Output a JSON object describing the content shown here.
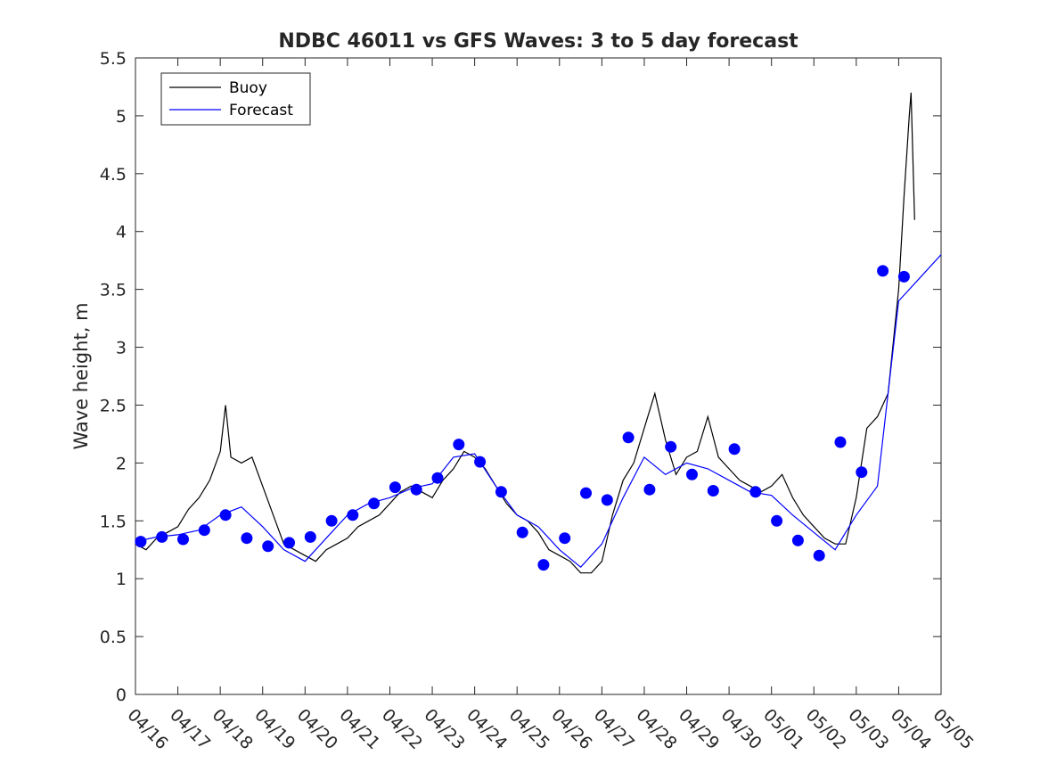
{
  "chart_data": {
    "type": "line",
    "title": "NDBC 46011 vs GFS Waves: 3 to 5 day forecast",
    "xlabel": "",
    "ylabel": "Wave height, m",
    "ylim": [
      0,
      5.5
    ],
    "yticks": [
      0,
      0.5,
      1,
      1.5,
      2,
      2.5,
      3,
      3.5,
      4,
      4.5,
      5,
      5.5
    ],
    "ytick_labels": [
      "0",
      "0.5",
      "1",
      "1.5",
      "2",
      "2.5",
      "3",
      "3.5",
      "4",
      "4.5",
      "5",
      "5.5"
    ],
    "xlim": [
      "2024-04-16",
      "2024-05-05"
    ],
    "xtick_labels": [
      "04/16",
      "04/17",
      "04/18",
      "04/19",
      "04/20",
      "04/21",
      "04/22",
      "04/23",
      "04/24",
      "04/25",
      "04/26",
      "04/27",
      "04/28",
      "04/29",
      "04/30",
      "05/01",
      "05/02",
      "05/03",
      "05/04",
      "05/05"
    ],
    "grid": false,
    "legend": {
      "position": "top-left",
      "entries": [
        {
          "name": "Buoy",
          "color": "#000000"
        },
        {
          "name": "Forecast",
          "color": "#0000ff"
        }
      ]
    },
    "series": [
      {
        "name": "Buoy",
        "color": "#000000",
        "points": [
          [
            "04/16 00:00",
            1.3
          ],
          [
            "04/16 06:00",
            1.25
          ],
          [
            "04/16 12:00",
            1.35
          ],
          [
            "04/16 18:00",
            1.4
          ],
          [
            "04/17 00:00",
            1.45
          ],
          [
            "04/17 06:00",
            1.6
          ],
          [
            "04/17 12:00",
            1.7
          ],
          [
            "04/17 18:00",
            1.85
          ],
          [
            "04/18 00:00",
            2.1
          ],
          [
            "04/18 03:00",
            2.5
          ],
          [
            "04/18 06:00",
            2.05
          ],
          [
            "04/18 12:00",
            2.0
          ],
          [
            "04/18 18:00",
            2.05
          ],
          [
            "04/19 00:00",
            1.8
          ],
          [
            "04/19 06:00",
            1.55
          ],
          [
            "04/19 12:00",
            1.3
          ],
          [
            "04/19 18:00",
            1.25
          ],
          [
            "04/20 00:00",
            1.2
          ],
          [
            "04/20 06:00",
            1.15
          ],
          [
            "04/20 12:00",
            1.25
          ],
          [
            "04/20 18:00",
            1.3
          ],
          [
            "04/21 00:00",
            1.35
          ],
          [
            "04/21 06:00",
            1.45
          ],
          [
            "04/21 12:00",
            1.5
          ],
          [
            "04/21 18:00",
            1.55
          ],
          [
            "04/22 00:00",
            1.65
          ],
          [
            "04/22 06:00",
            1.75
          ],
          [
            "04/22 12:00",
            1.8
          ],
          [
            "04/22 18:00",
            1.75
          ],
          [
            "04/23 00:00",
            1.7
          ],
          [
            "04/23 06:00",
            1.85
          ],
          [
            "04/23 12:00",
            1.95
          ],
          [
            "04/23 18:00",
            2.1
          ],
          [
            "04/24 00:00",
            2.05
          ],
          [
            "04/24 06:00",
            1.95
          ],
          [
            "04/24 12:00",
            1.8
          ],
          [
            "04/24 18:00",
            1.65
          ],
          [
            "04/25 00:00",
            1.55
          ],
          [
            "04/25 06:00",
            1.5
          ],
          [
            "04/25 12:00",
            1.4
          ],
          [
            "04/25 18:00",
            1.25
          ],
          [
            "04/26 00:00",
            1.2
          ],
          [
            "04/26 06:00",
            1.15
          ],
          [
            "04/26 12:00",
            1.05
          ],
          [
            "04/26 18:00",
            1.05
          ],
          [
            "04/27 00:00",
            1.15
          ],
          [
            "04/27 06:00",
            1.55
          ],
          [
            "04/27 12:00",
            1.85
          ],
          [
            "04/27 18:00",
            2.0
          ],
          [
            "04/28 00:00",
            2.3
          ],
          [
            "04/28 06:00",
            2.6
          ],
          [
            "04/28 12:00",
            2.2
          ],
          [
            "04/28 18:00",
            1.9
          ],
          [
            "04/29 00:00",
            2.05
          ],
          [
            "04/29 06:00",
            2.1
          ],
          [
            "04/29 12:00",
            2.4
          ],
          [
            "04/29 18:00",
            2.05
          ],
          [
            "04/30 00:00",
            1.95
          ],
          [
            "04/30 06:00",
            1.85
          ],
          [
            "04/30 12:00",
            1.8
          ],
          [
            "04/30 18:00",
            1.75
          ],
          [
            "05/01 00:00",
            1.8
          ],
          [
            "05/01 06:00",
            1.9
          ],
          [
            "05/01 12:00",
            1.7
          ],
          [
            "05/01 18:00",
            1.55
          ],
          [
            "05/02 00:00",
            1.45
          ],
          [
            "05/02 06:00",
            1.35
          ],
          [
            "05/02 12:00",
            1.3
          ],
          [
            "05/02 18:00",
            1.3
          ],
          [
            "05/03 00:00",
            1.7
          ],
          [
            "05/03 06:00",
            2.3
          ],
          [
            "05/03 12:00",
            2.4
          ],
          [
            "05/03 18:00",
            2.6
          ],
          [
            "05/04 00:00",
            3.5
          ],
          [
            "05/04 03:00",
            4.3
          ],
          [
            "05/04 06:00",
            5.0
          ],
          [
            "05/04 07:00",
            5.2
          ],
          [
            "05/04 09:00",
            4.1
          ]
        ]
      },
      {
        "name": "Forecast",
        "color": "#0000ff",
        "points": [
          [
            "04/16 00:00",
            1.32
          ],
          [
            "04/16 12:00",
            1.36
          ],
          [
            "04/17 00:00",
            1.38
          ],
          [
            "04/17 12:00",
            1.42
          ],
          [
            "04/18 00:00",
            1.55
          ],
          [
            "04/18 12:00",
            1.62
          ],
          [
            "04/19 00:00",
            1.45
          ],
          [
            "04/19 12:00",
            1.25
          ],
          [
            "04/20 00:00",
            1.15
          ],
          [
            "04/20 12:00",
            1.35
          ],
          [
            "04/21 00:00",
            1.55
          ],
          [
            "04/21 12:00",
            1.65
          ],
          [
            "04/22 00:00",
            1.7
          ],
          [
            "04/22 12:00",
            1.78
          ],
          [
            "04/23 00:00",
            1.82
          ],
          [
            "04/23 12:00",
            2.05
          ],
          [
            "04/24 00:00",
            2.08
          ],
          [
            "04/24 12:00",
            1.8
          ],
          [
            "04/25 00:00",
            1.55
          ],
          [
            "04/25 12:00",
            1.45
          ],
          [
            "04/26 00:00",
            1.25
          ],
          [
            "04/26 12:00",
            1.1
          ],
          [
            "04/27 00:00",
            1.3
          ],
          [
            "04/27 12:00",
            1.7
          ],
          [
            "04/28 00:00",
            2.05
          ],
          [
            "04/28 12:00",
            1.9
          ],
          [
            "04/29 00:00",
            2.0
          ],
          [
            "04/29 12:00",
            1.95
          ],
          [
            "04/30 00:00",
            1.85
          ],
          [
            "04/30 12:00",
            1.75
          ],
          [
            "05/01 00:00",
            1.72
          ],
          [
            "05/01 12:00",
            1.55
          ],
          [
            "05/02 00:00",
            1.4
          ],
          [
            "05/02 12:00",
            1.25
          ],
          [
            "05/03 00:00",
            1.55
          ],
          [
            "05/03 12:00",
            1.8
          ],
          [
            "05/04 00:00",
            3.4
          ],
          [
            "05/04 12:00",
            3.6
          ],
          [
            "05/05 00:00",
            3.8
          ]
        ]
      }
    ],
    "forecast_points": [
      [
        "04/16 03:00",
        1.32
      ],
      [
        "04/16 15:00",
        1.36
      ],
      [
        "04/17 03:00",
        1.34
      ],
      [
        "04/17 15:00",
        1.42
      ],
      [
        "04/18 03:00",
        1.55
      ],
      [
        "04/18 15:00",
        1.35
      ],
      [
        "04/19 03:00",
        1.28
      ],
      [
        "04/19 15:00",
        1.31
      ],
      [
        "04/20 03:00",
        1.36
      ],
      [
        "04/20 15:00",
        1.5
      ],
      [
        "04/21 03:00",
        1.55
      ],
      [
        "04/21 15:00",
        1.65
      ],
      [
        "04/22 03:00",
        1.79
      ],
      [
        "04/22 15:00",
        1.77
      ],
      [
        "04/23 03:00",
        1.87
      ],
      [
        "04/23 15:00",
        2.16
      ],
      [
        "04/24 03:00",
        2.01
      ],
      [
        "04/24 15:00",
        1.75
      ],
      [
        "04/25 03:00",
        1.4
      ],
      [
        "04/25 15:00",
        1.12
      ],
      [
        "04/26 03:00",
        1.35
      ],
      [
        "04/26 15:00",
        1.74
      ],
      [
        "04/27 03:00",
        1.68
      ],
      [
        "04/27 15:00",
        2.22
      ],
      [
        "04/28 03:00",
        1.77
      ],
      [
        "04/28 15:00",
        2.14
      ],
      [
        "04/29 03:00",
        1.9
      ],
      [
        "04/29 15:00",
        1.76
      ],
      [
        "04/30 03:00",
        2.12
      ],
      [
        "04/30 15:00",
        1.75
      ],
      [
        "05/01 03:00",
        1.5
      ],
      [
        "05/01 15:00",
        1.33
      ],
      [
        "05/02 03:00",
        1.2
      ],
      [
        "05/02 15:00",
        2.18
      ],
      [
        "05/03 03:00",
        1.92
      ],
      [
        "05/03 15:00",
        3.66
      ],
      [
        "05/04 03:00",
        3.61
      ]
    ]
  }
}
